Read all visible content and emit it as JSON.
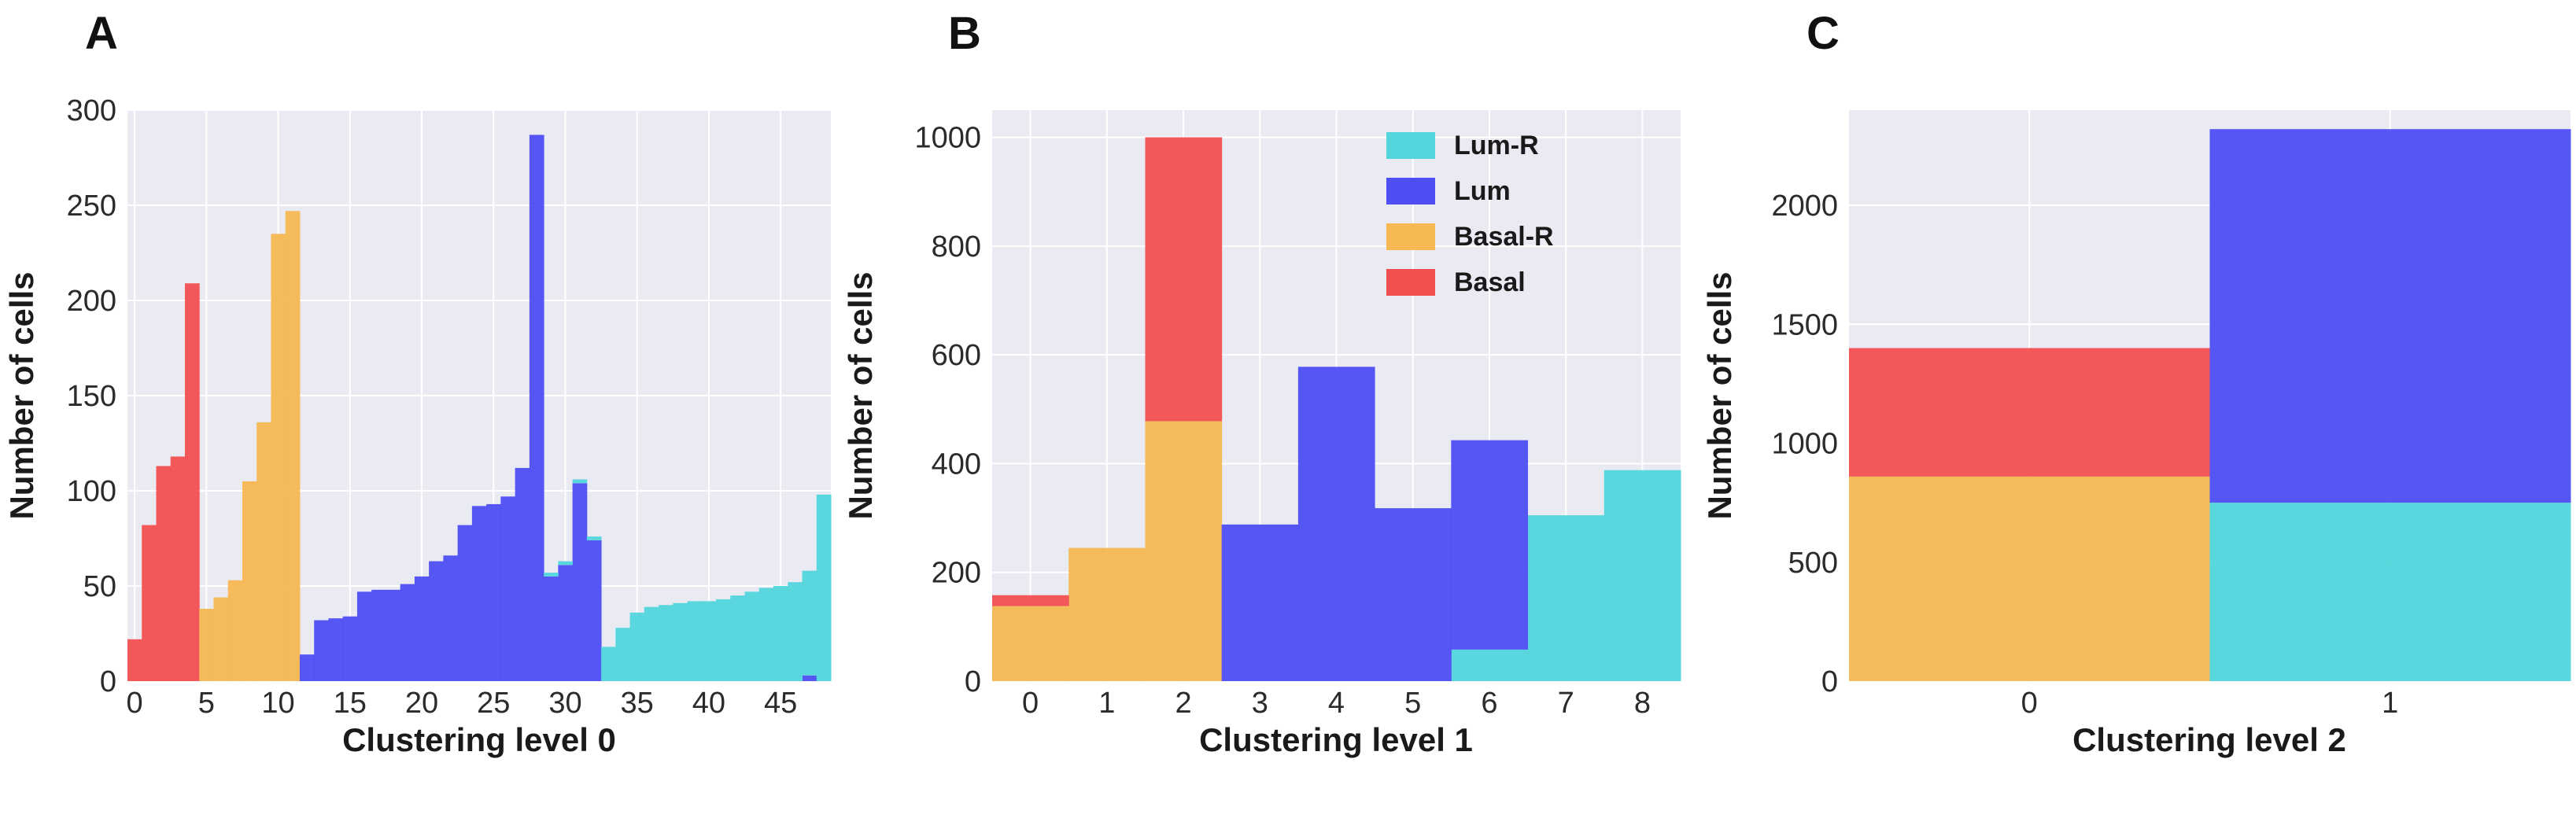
{
  "figure": {
    "panels": [
      "A",
      "B",
      "C"
    ]
  },
  "colors": {
    "Lum-R": "#52d6dc",
    "Lum": "#4e4ef4",
    "Basal-R": "#f5b852",
    "Basal": "#f25050",
    "plot_bg": "#eaeaf2",
    "grid": "#ffffff"
  },
  "chart_data": [
    {
      "panel": "A",
      "type": "bar",
      "stacked": true,
      "xlabel": "Clustering level 0",
      "ylabel": "Number of cells",
      "xlim": [
        -0.5,
        48.5
      ],
      "ylim": [
        0,
        300
      ],
      "xticks": [
        0,
        5,
        10,
        15,
        20,
        25,
        30,
        35,
        40,
        45
      ],
      "yticks": [
        0,
        50,
        100,
        150,
        200,
        250,
        300
      ],
      "x": [
        0,
        1,
        2,
        3,
        4,
        5,
        6,
        7,
        8,
        9,
        10,
        11,
        12,
        13,
        14,
        15,
        16,
        17,
        18,
        19,
        20,
        21,
        22,
        23,
        24,
        25,
        26,
        27,
        28,
        29,
        30,
        31,
        32,
        33,
        34,
        35,
        36,
        37,
        38,
        39,
        40,
        41,
        42,
        43,
        44,
        45,
        46,
        47,
        48
      ],
      "series": [
        {
          "name": "Basal",
          "values": [
            22,
            82,
            113,
            118,
            209,
            0,
            0,
            0,
            0,
            0,
            0,
            0,
            0,
            0,
            0,
            0,
            0,
            0,
            0,
            0,
            0,
            0,
            0,
            0,
            0,
            0,
            0,
            0,
            0,
            0,
            0,
            0,
            0,
            0,
            0,
            0,
            0,
            0,
            0,
            0,
            0,
            0,
            0,
            0,
            0,
            0,
            0,
            0,
            0
          ]
        },
        {
          "name": "Basal-R",
          "values": [
            0,
            0,
            0,
            0,
            0,
            38,
            44,
            53,
            105,
            136,
            235,
            247,
            0,
            0,
            0,
            0,
            0,
            0,
            0,
            0,
            0,
            0,
            0,
            0,
            0,
            0,
            0,
            0,
            0,
            0,
            0,
            0,
            0,
            0,
            0,
            0,
            0,
            0,
            0,
            0,
            0,
            0,
            0,
            0,
            0,
            0,
            0,
            0,
            0
          ]
        },
        {
          "name": "Lum",
          "values": [
            0,
            0,
            0,
            0,
            0,
            0,
            0,
            0,
            0,
            0,
            0,
            0,
            14,
            32,
            33,
            34,
            47,
            48,
            48,
            51,
            55,
            63,
            66,
            82,
            92,
            93,
            97,
            112,
            287,
            55,
            61,
            104,
            74,
            0,
            0,
            0,
            0,
            0,
            0,
            0,
            0,
            0,
            0,
            0,
            0,
            0,
            0,
            3,
            0
          ]
        },
        {
          "name": "Lum-R",
          "values": [
            0,
            0,
            0,
            0,
            0,
            0,
            0,
            0,
            0,
            0,
            0,
            0,
            0,
            0,
            0,
            0,
            0,
            0,
            0,
            0,
            0,
            0,
            0,
            0,
            0,
            0,
            0,
            0,
            0,
            2,
            2,
            2,
            2,
            18,
            28,
            36,
            39,
            40,
            41,
            42,
            42,
            43,
            45,
            47,
            49,
            50,
            52,
            55,
            98
          ]
        }
      ]
    },
    {
      "panel": "B",
      "type": "bar",
      "stacked": true,
      "xlabel": "Clustering level 1",
      "ylabel": "Number of cells",
      "xlim": [
        -0.5,
        8.5
      ],
      "ylim": [
        0,
        1050
      ],
      "xticks": [
        0,
        1,
        2,
        3,
        4,
        5,
        6,
        7,
        8
      ],
      "yticks": [
        0,
        200,
        400,
        600,
        800,
        1000
      ],
      "x": [
        0,
        1,
        2,
        3,
        4,
        5,
        6,
        7,
        8
      ],
      "series": [
        {
          "name": "Basal-R",
          "values": [
            138,
            245,
            478,
            0,
            0,
            0,
            0,
            0,
            0
          ]
        },
        {
          "name": "Basal",
          "values": [
            20,
            0,
            522,
            0,
            0,
            0,
            0,
            0,
            0
          ]
        },
        {
          "name": "Lum-R",
          "values": [
            0,
            0,
            0,
            0,
            0,
            0,
            58,
            305,
            388
          ]
        },
        {
          "name": "Lum",
          "values": [
            0,
            0,
            0,
            288,
            578,
            318,
            385,
            0,
            0
          ]
        }
      ],
      "legend": {
        "location": "upper-right",
        "entries": [
          "Lum-R",
          "Lum",
          "Basal-R",
          "Basal"
        ]
      }
    },
    {
      "panel": "C",
      "type": "bar",
      "stacked": true,
      "xlabel": "Clustering level 2",
      "ylabel": "Number of cells",
      "xlim": [
        -0.5,
        1.5
      ],
      "ylim": [
        0,
        2400
      ],
      "xticks": [
        0,
        1
      ],
      "yticks": [
        0,
        500,
        1000,
        1500,
        2000
      ],
      "x": [
        0,
        1
      ],
      "series": [
        {
          "name": "Basal-R",
          "values": [
            860,
            0
          ]
        },
        {
          "name": "Basal",
          "values": [
            540,
            0
          ]
        },
        {
          "name": "Lum-R",
          "values": [
            0,
            750
          ]
        },
        {
          "name": "Lum",
          "values": [
            0,
            1570
          ]
        }
      ]
    }
  ]
}
